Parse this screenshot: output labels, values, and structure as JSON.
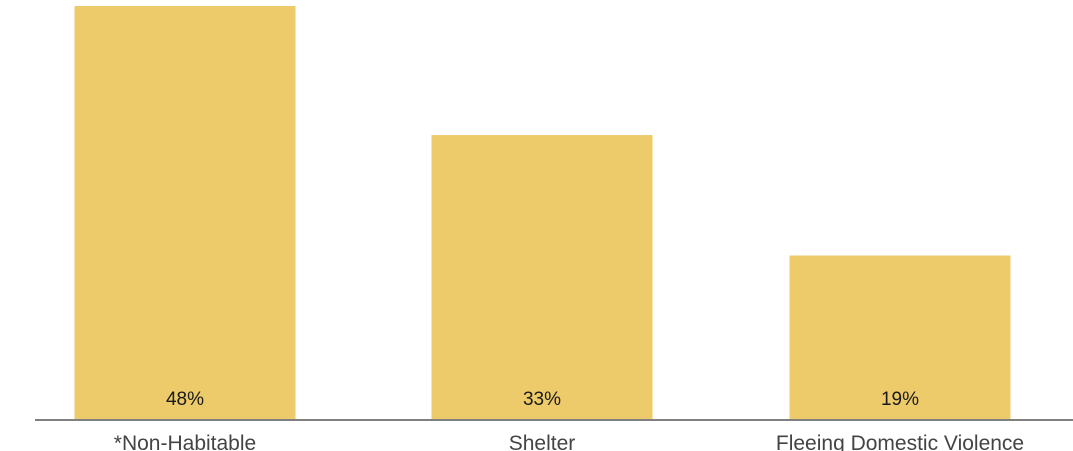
{
  "chart_data": {
    "type": "bar",
    "categories": [
      "*Non-Habitable",
      "Shelter",
      "Fleeing Domestic Violence"
    ],
    "values": [
      48,
      33,
      19
    ],
    "value_labels": [
      "48%",
      "33%",
      "19%"
    ],
    "unit": "%",
    "ylim": [
      0,
      48
    ],
    "grid": false,
    "legend": "none",
    "colors": {
      "bar": "#EDCA6A",
      "axis": "#808080",
      "label_text": "#1a1a1a",
      "category_text": "#444444"
    }
  }
}
